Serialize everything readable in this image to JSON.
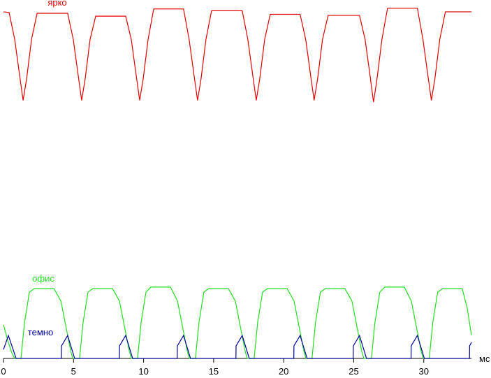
{
  "chart_data": {
    "type": "line",
    "xlabel": "мс",
    "xlim": [
      0,
      33.4
    ],
    "ylim": [
      0,
      100
    ],
    "xticks": [
      0,
      5,
      10,
      15,
      20,
      25,
      30
    ],
    "series": [
      {
        "name": "ярко",
        "color": "#e00000",
        "x": [
          0,
          0.4,
          0.8,
          1.15,
          1.4,
          1.65,
          2.0,
          2.4,
          4.58,
          4.98,
          5.33,
          5.58,
          5.83,
          6.18,
          6.58,
          8.72,
          9.12,
          9.47,
          9.72,
          9.97,
          10.32,
          10.72,
          12.85,
          13.25,
          13.6,
          13.85,
          14.1,
          14.45,
          14.85,
          17.04,
          17.44,
          17.79,
          18.04,
          18.29,
          18.64,
          19.04,
          21.17,
          21.57,
          21.92,
          22.17,
          22.42,
          22.77,
          23.17,
          25.41,
          25.81,
          26.16,
          26.41,
          26.66,
          27.01,
          27.41,
          29.54,
          29.94,
          30.29,
          30.54,
          30.79,
          31.14,
          31.54,
          33.4
        ],
        "values": [
          96.7,
          96.5,
          89,
          79,
          72,
          78,
          89,
          96.3,
          96.3,
          89,
          79,
          72,
          78,
          89,
          95.5,
          95.5,
          89,
          79,
          72,
          78,
          89,
          97.5,
          97.5,
          89,
          79,
          72,
          78,
          89,
          97,
          97,
          89,
          79,
          72,
          78,
          89,
          96,
          96,
          89,
          79,
          72,
          78,
          89,
          95.7,
          95.7,
          89,
          79,
          71.5,
          78,
          89,
          97.7,
          97.7,
          89,
          79,
          72,
          78,
          89,
          96.7,
          96.7
        ]
      },
      {
        "name": "офис",
        "color": "#22dd22",
        "x": [
          0,
          0.3,
          0.6,
          0.8,
          1.25,
          1.5,
          1.85,
          2.2,
          3.6,
          4.1,
          4.5,
          4.8,
          4.95,
          5.43,
          5.68,
          6.03,
          6.38,
          7.78,
          8.28,
          8.68,
          8.98,
          9.13,
          9.57,
          9.82,
          10.17,
          10.52,
          11.92,
          12.42,
          12.82,
          13.12,
          13.27,
          13.7,
          13.95,
          14.3,
          14.65,
          16.05,
          16.55,
          16.95,
          17.25,
          17.4,
          17.89,
          18.14,
          18.49,
          18.84,
          20.24,
          20.74,
          21.14,
          21.44,
          21.59,
          22.02,
          22.27,
          22.62,
          22.97,
          24.37,
          24.87,
          25.27,
          25.57,
          25.72,
          26.26,
          26.51,
          26.86,
          27.21,
          28.61,
          29.11,
          29.51,
          29.81,
          29.96,
          30.39,
          30.64,
          30.99,
          31.34,
          32.74,
          33.1,
          33.4
        ],
        "values": [
          9.4,
          5,
          1.5,
          0,
          0,
          10,
          18.5,
          19.5,
          19.5,
          16,
          8,
          2,
          0,
          0,
          10,
          18.5,
          19.5,
          19.5,
          16,
          8,
          2,
          0,
          0,
          10,
          18.5,
          19.9,
          19.9,
          16,
          8,
          2,
          0,
          0,
          10,
          18.5,
          19.5,
          19.5,
          16,
          8,
          2,
          0,
          0,
          10,
          18.5,
          19.5,
          19.5,
          16,
          8,
          2,
          0,
          0,
          10,
          18.5,
          19.5,
          19.5,
          16,
          8,
          2,
          0,
          0,
          10,
          18.5,
          19.9,
          19.9,
          16,
          8,
          2,
          0,
          0,
          10,
          18.5,
          19.5,
          19.5,
          14,
          6.5
        ]
      },
      {
        "name": "темно",
        "color": "#000099",
        "x": [
          0,
          0.35,
          0.9,
          4.13,
          4.14,
          4.58,
          5.08,
          8.27,
          8.28,
          8.72,
          9.22,
          12.4,
          12.41,
          12.85,
          13.35,
          16.59,
          16.6,
          17.04,
          17.54,
          20.72,
          20.73,
          21.17,
          21.67,
          24.96,
          24.97,
          25.41,
          25.91,
          29.09,
          29.1,
          29.54,
          30.04,
          33.26,
          33.27,
          33.4
        ],
        "values": [
          2.5,
          6.4,
          0,
          0,
          3.5,
          6.4,
          0,
          0,
          3.5,
          6.4,
          0,
          0,
          3.5,
          6.4,
          0,
          0,
          3.5,
          6.4,
          0,
          0,
          3.5,
          6.4,
          0,
          0,
          3.5,
          6.4,
          0,
          0,
          3.5,
          6.4,
          0,
          0,
          3.5,
          4.5
        ]
      }
    ]
  }
}
